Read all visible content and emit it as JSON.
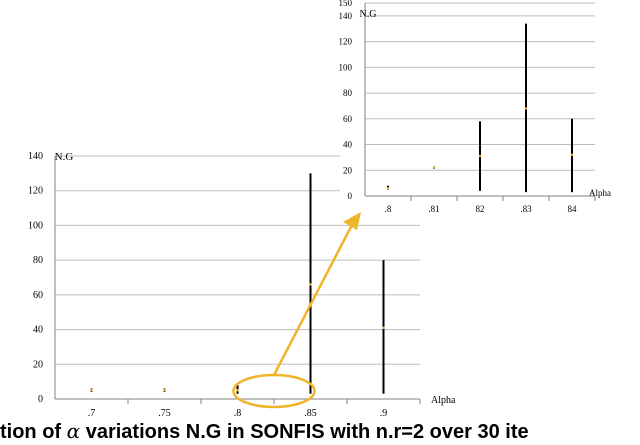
{
  "colors": {
    "grid": "#bdbdbd",
    "axis": "#808080",
    "bar": "#000000",
    "highlight": "#f0b429",
    "text": "#000000",
    "caption": "#000000"
  },
  "caption": {
    "prefix": "tion of ",
    "symbol": "α",
    "suffix": " variations N.G in SONFIS with n.r=2 over 30 ite"
  },
  "chart_data": [
    {
      "type": "bar",
      "chart": "main",
      "ylabel": "N.G",
      "xlabel": "Alpha",
      "ylim": [
        0,
        140
      ],
      "yticks": [
        0,
        20,
        40,
        60,
        80,
        100,
        120,
        140
      ],
      "x": [
        0.7,
        0.75,
        0.8,
        0.85,
        0.9
      ],
      "xtick_labels": [
        ".7",
        ".75",
        ".8",
        ".85",
        ".9"
      ],
      "ranges": [
        {
          "x": 0.7,
          "low": 4,
          "high": 6,
          "mid": 5
        },
        {
          "x": 0.75,
          "low": 4,
          "high": 6,
          "mid": 5
        },
        {
          "x": 0.8,
          "low": 3,
          "high": 8,
          "mid": 5
        },
        {
          "x": 0.85,
          "low": 3,
          "high": 130,
          "mid": 66
        },
        {
          "x": 0.9,
          "low": 3,
          "high": 80,
          "mid": 41
        }
      ],
      "grid": true,
      "highlight_region": {
        "x_from": 0.8,
        "x_to": 0.85,
        "shape": "ellipse",
        "color": "#f0b429"
      }
    },
    {
      "type": "bar",
      "chart": "inset",
      "ylabel": "N.G",
      "xlabel": "Alpha",
      "ylim": [
        0,
        150
      ],
      "yticks": [
        0,
        20,
        40,
        60,
        80,
        100,
        120,
        140,
        150
      ],
      "ytick_labels": [
        "0",
        "20",
        "40",
        "60",
        "80",
        "100",
        "120",
        "140",
        "150"
      ],
      "x": [
        0.8,
        0.81,
        0.82,
        0.83,
        0.84
      ],
      "xtick_labels": [
        ".8",
        ".81",
        "82",
        ".83",
        "84"
      ],
      "ranges": [
        {
          "x": 0.8,
          "low": 5,
          "high": 8,
          "mid": 6
        },
        {
          "x": 0.81,
          "low": 21,
          "high": 23,
          "mid": 22
        },
        {
          "x": 0.82,
          "low": 4,
          "high": 58,
          "mid": 31
        },
        {
          "x": 0.83,
          "low": 3,
          "high": 134,
          "mid": 68
        },
        {
          "x": 0.84,
          "low": 3,
          "high": 60,
          "mid": 32
        }
      ],
      "grid": true
    }
  ]
}
